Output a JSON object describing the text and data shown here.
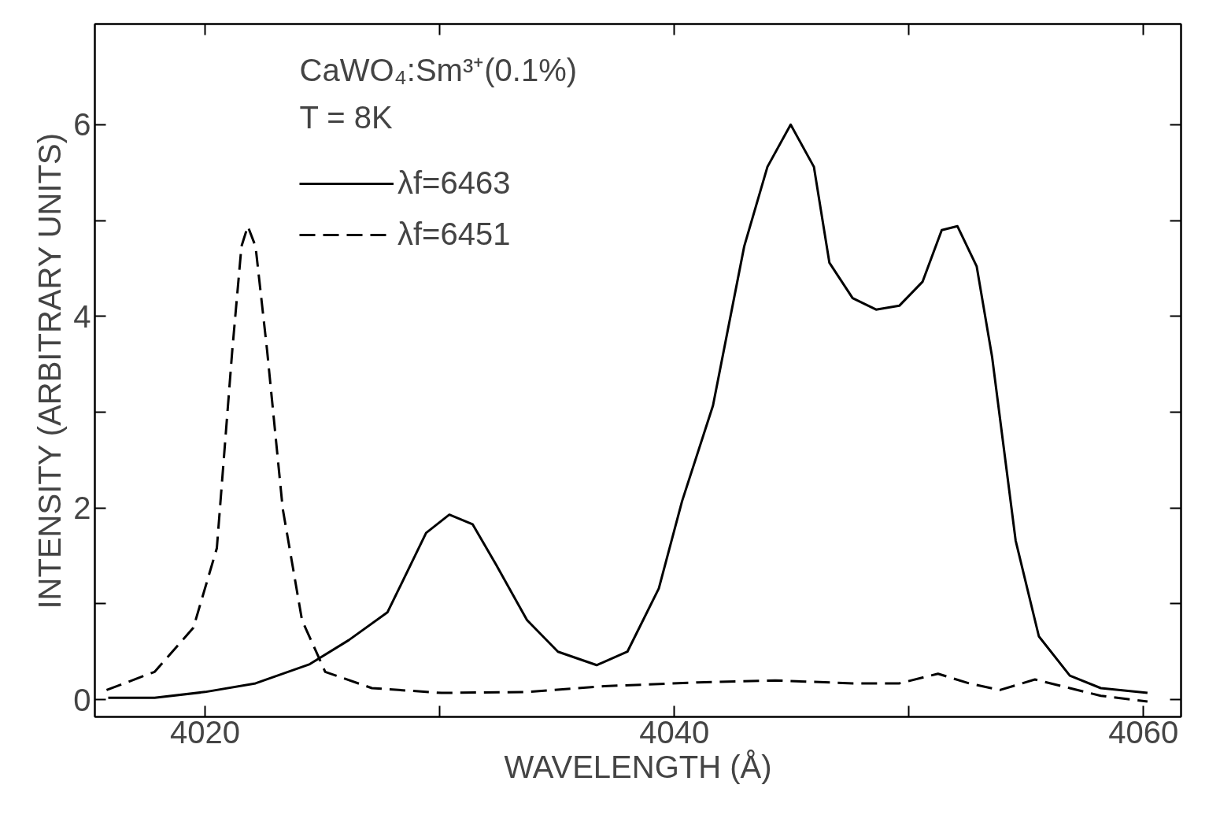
{
  "chart_data": {
    "type": "line",
    "xlabel": "WAVELENGTH (Å)",
    "ylabel": "INTENSITY (ARBITRARY UNITS)",
    "annotations": [
      "CaWO₄:Sm³⁺(0.1%)",
      "T = 8K"
    ],
    "xlim": [
      4015.3,
      4061.6
    ],
    "ylim": [
      -0.18,
      7.05
    ],
    "xticks": [
      4020,
      {
        "value": 4030,
        "label": null
      },
      4040,
      {
        "value": 4050,
        "label": null
      },
      4060
    ],
    "yticks": [
      0,
      {
        "value": 1,
        "label": null
      },
      2,
      {
        "value": 3,
        "label": null
      },
      4,
      {
        "value": 5,
        "label": null
      },
      6
    ],
    "grid": false,
    "legend": "top left",
    "marker": "none",
    "series": [
      {
        "name": "λf=6463",
        "color": "#000000",
        "line_style": "solid",
        "x": [
          4015.87,
          4017.85,
          4020.0,
          4022.15,
          4024.46,
          4026.12,
          4027.77,
          4028.43,
          4029.42,
          4030.41,
          4031.4,
          4032.4,
          4033.72,
          4035.04,
          4036.69,
          4038.0,
          4039.34,
          4040.33,
          4041.65,
          4042.98,
          4043.97,
          4044.96,
          4045.95,
          4046.61,
          4047.6,
          4048.6,
          4049.59,
          4050.58,
          4051.4,
          4052.07,
          4052.89,
          4053.55,
          4054.55,
          4055.54,
          4056.86,
          4058.18,
          4060.17
        ],
        "values": [
          0.02,
          0.02,
          0.08,
          0.17,
          0.37,
          0.62,
          0.91,
          1.24,
          1.74,
          1.93,
          1.83,
          1.41,
          0.83,
          0.5,
          0.36,
          0.5,
          1.16,
          2.07,
          3.07,
          4.73,
          5.56,
          6.0,
          5.56,
          4.56,
          4.19,
          4.07,
          4.11,
          4.36,
          4.9,
          4.94,
          4.52,
          3.57,
          1.66,
          0.66,
          0.25,
          0.12,
          0.07
        ]
      },
      {
        "name": "λf=6451",
        "color": "#000000",
        "line_style": "dashed",
        "x": [
          4015.8,
          4017.85,
          4019.5,
          4020.5,
          4021.16,
          4021.55,
          4021.82,
          4022.15,
          4022.64,
          4023.31,
          4024.13,
          4025.12,
          4027.11,
          4030.08,
          4033.72,
          4037.02,
          4041.0,
          4044.3,
          4047.6,
          4049.6,
          4051.24,
          4052.56,
          4053.88,
          4055.37,
          4056.86,
          4058.18,
          4060.17
        ],
        "values": [
          0.1,
          0.29,
          0.75,
          1.58,
          3.65,
          4.73,
          4.94,
          4.73,
          3.65,
          1.99,
          0.83,
          0.29,
          0.12,
          0.07,
          0.08,
          0.14,
          0.18,
          0.2,
          0.17,
          0.17,
          0.27,
          0.17,
          0.1,
          0.21,
          0.12,
          0.04,
          -0.02
        ]
      }
    ]
  }
}
